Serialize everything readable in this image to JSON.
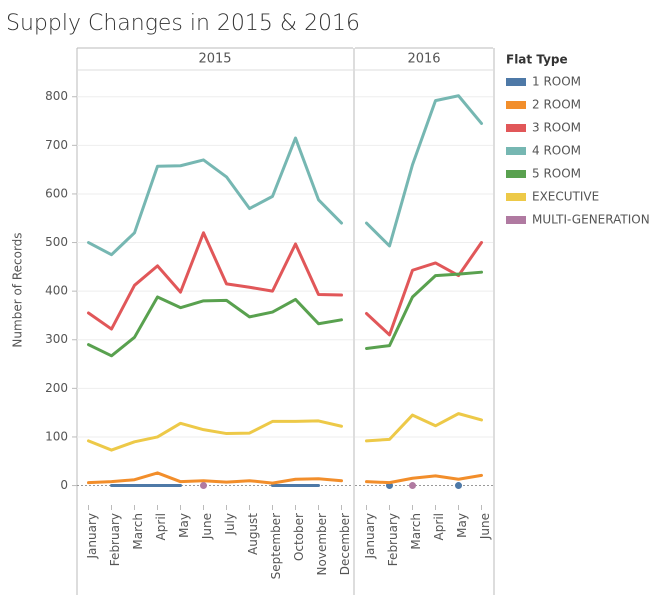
{
  "chart_data": {
    "type": "line",
    "title": "Supply Changes in 2015 & 2016",
    "y_label": "Number of Records",
    "legend_title": "Flat Type",
    "ylim": [
      -40,
      855
    ],
    "yticks": [
      0,
      100,
      200,
      300,
      400,
      500,
      600,
      700,
      800
    ],
    "grid": true,
    "series": [
      {
        "name": "1 ROOM",
        "color": "#4e79a7"
      },
      {
        "name": "2 ROOM",
        "color": "#f28e2b"
      },
      {
        "name": "3 ROOM",
        "color": "#e15759"
      },
      {
        "name": "4 ROOM",
        "color": "#76b7b2"
      },
      {
        "name": "5 ROOM",
        "color": "#59a14f"
      },
      {
        "name": "EXECUTIVE",
        "color": "#edc948"
      },
      {
        "name": "MULTI-GENERATION",
        "color": "#b07aa1"
      }
    ],
    "panels": [
      {
        "name": "2015",
        "categories": [
          "January",
          "February",
          "March",
          "April",
          "May",
          "June",
          "July",
          "August",
          "September",
          "October",
          "November",
          "December"
        ],
        "values": [
          [
            null,
            0,
            0,
            0,
            0,
            null,
            null,
            null,
            0,
            0,
            0,
            null
          ],
          [
            6,
            8,
            12,
            26,
            8,
            10,
            7,
            10,
            5,
            13,
            14,
            10
          ],
          [
            355,
            322,
            412,
            452,
            398,
            520,
            415,
            408,
            400,
            497,
            393,
            392
          ],
          [
            500,
            475,
            520,
            657,
            658,
            670,
            635,
            570,
            595,
            715,
            588,
            540
          ],
          [
            290,
            267,
            305,
            388,
            366,
            380,
            381,
            347,
            357,
            383,
            333,
            341
          ],
          [
            92,
            73,
            90,
            100,
            128,
            115,
            107,
            108,
            132,
            132,
            133,
            122
          ],
          [
            null,
            null,
            null,
            null,
            null,
            0,
            null,
            null,
            null,
            null,
            null,
            null
          ]
        ]
      },
      {
        "name": "2016",
        "categories": [
          "January",
          "February",
          "March",
          "April",
          "May",
          "June"
        ],
        "values": [
          [
            null,
            0,
            null,
            null,
            0,
            null
          ],
          [
            8,
            6,
            15,
            20,
            13,
            21
          ],
          [
            354,
            310,
            443,
            458,
            432,
            500
          ],
          [
            540,
            493,
            660,
            792,
            802,
            745
          ],
          [
            282,
            288,
            388,
            432,
            435,
            439
          ],
          [
            92,
            95,
            145,
            123,
            148,
            135
          ],
          [
            null,
            null,
            0,
            null,
            null,
            null
          ]
        ]
      }
    ]
  }
}
